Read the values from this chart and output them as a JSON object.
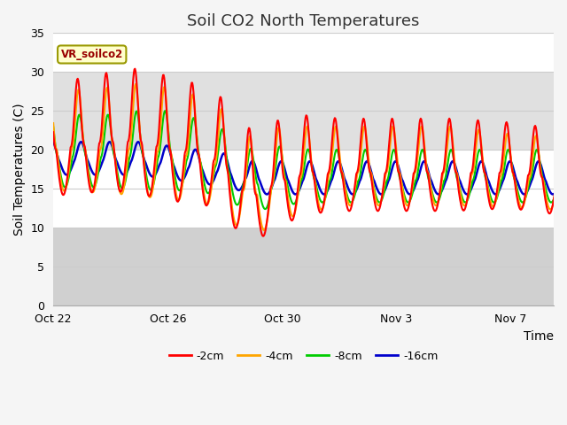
{
  "title": "Soil CO2 North Temperatures",
  "ylabel": "Soil Temperatures (C)",
  "xlabel": "Time",
  "annotation": "VR_soilco2",
  "ylim": [
    0,
    35
  ],
  "series": [
    {
      "label": "-2cm",
      "color": "#ff0000"
    },
    {
      "label": "-4cm",
      "color": "#ffa500"
    },
    {
      "label": "-8cm",
      "color": "#00cc00"
    },
    {
      "label": "-16cm",
      "color": "#0000cc"
    }
  ],
  "x_ticks_labels": [
    "Oct 22",
    "Oct 26",
    "Oct 30",
    "Nov 3",
    "Nov 7"
  ],
  "x_ticks_pos": [
    0,
    4,
    8,
    12,
    16
  ],
  "bg_bands": [
    {
      "ymin": 0,
      "ymax": 10,
      "color": "#d0d0d0"
    },
    {
      "ymin": 10,
      "ymax": 20,
      "color": "#ffffff"
    },
    {
      "ymin": 20,
      "ymax": 30,
      "color": "#e0e0e0"
    },
    {
      "ymin": 30,
      "ymax": 35,
      "color": "#ffffff"
    }
  ],
  "grid_lines": [
    0,
    5,
    10,
    15,
    20,
    25,
    30,
    35
  ],
  "title_fontsize": 13,
  "axis_label_fontsize": 10,
  "tick_fontsize": 9
}
